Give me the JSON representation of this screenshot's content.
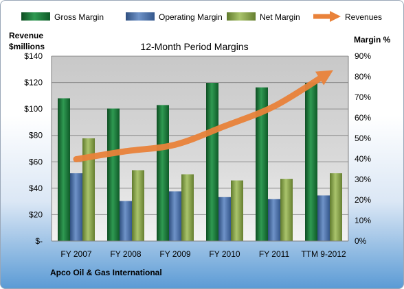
{
  "chart_data": {
    "type": "bar",
    "title": "12-Month Period Margins",
    "ylabel_left": "Revenue $millions",
    "ylabel_right": "Margin %",
    "footer": "Apco Oil & Gas International",
    "categories": [
      "FY 2007",
      "FY 2008",
      "FY 2009",
      "FY 2010",
      "FY 2011",
      "TTM 9-2012"
    ],
    "y_left_ticks": [
      "$-",
      "$20",
      "$40",
      "$60",
      "$80",
      "$100",
      "$120",
      "$140"
    ],
    "y_left_range": [
      0,
      140
    ],
    "y_right_ticks": [
      "0%",
      "10%",
      "20%",
      "30%",
      "40%",
      "50%",
      "60%",
      "70%",
      "80%",
      "90%"
    ],
    "y_right_range": [
      0,
      90
    ],
    "grid": true,
    "legend_position": "top",
    "series": [
      {
        "name": "Gross Margin",
        "axis": "right",
        "type": "bar",
        "color": "#1e7a3c",
        "values": [
          69.5,
          64.5,
          66.2,
          77.0,
          74.8,
          77.0
        ]
      },
      {
        "name": "Operating Margin",
        "axis": "right",
        "type": "bar",
        "color": "#4a6fa5",
        "values": [
          33.0,
          19.5,
          24.2,
          21.4,
          20.4,
          22.2
        ]
      },
      {
        "name": "Net Margin",
        "axis": "right",
        "type": "bar",
        "color": "#8aa64a",
        "values": [
          50.0,
          34.5,
          32.5,
          29.5,
          30.3,
          33.0
        ]
      },
      {
        "name": "Revenues",
        "axis": "left",
        "type": "line",
        "color": "#e9823a",
        "values": [
          62,
          68,
          73,
          87,
          102,
          125
        ]
      }
    ]
  }
}
